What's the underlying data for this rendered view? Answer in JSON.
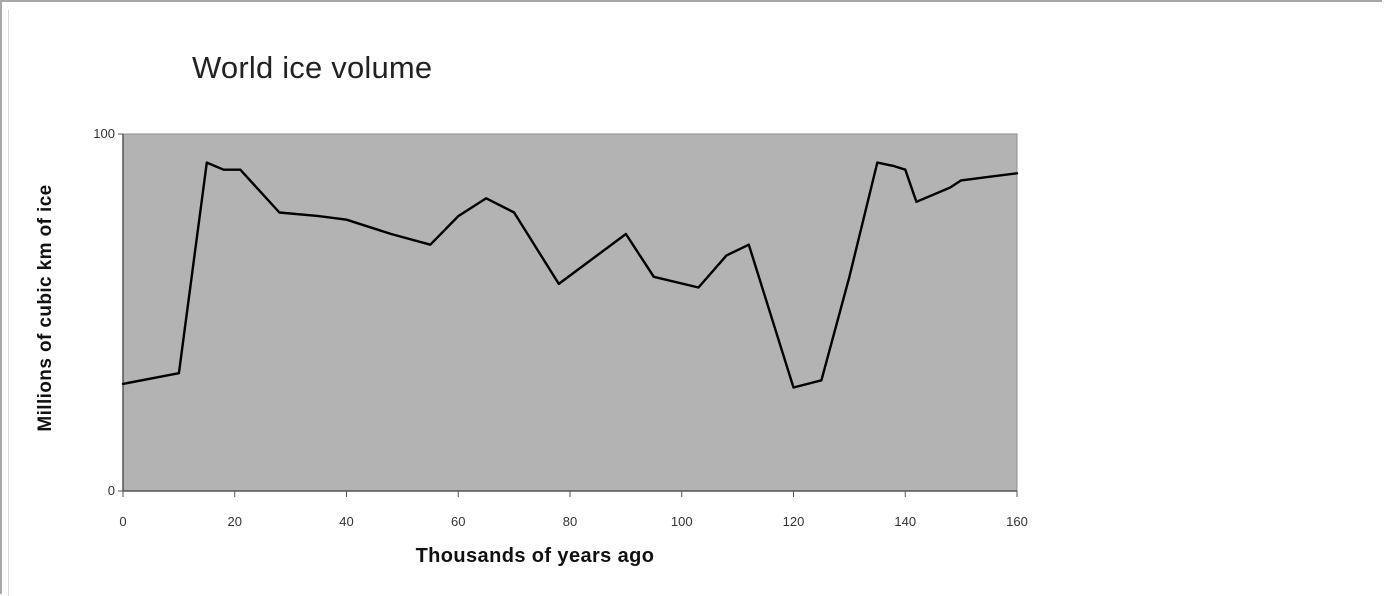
{
  "chart_data": {
    "type": "line",
    "title": "World ice volume",
    "xlabel": "Thousands of years ago",
    "ylabel": "Millions of cubic km of ice",
    "xlim": [
      0,
      160
    ],
    "ylim": [
      0,
      100
    ],
    "x_ticks": [
      "0",
      "20",
      "40",
      "60",
      "80",
      "100",
      "120",
      "140",
      "160"
    ],
    "y_ticks": [
      "0",
      "100"
    ],
    "grid": false,
    "legend": "none",
    "plot_background": "#b3b3b3",
    "line_color": "#000000",
    "series": [
      {
        "x": [
          0,
          10,
          15,
          18,
          21,
          28,
          35,
          40,
          48,
          55,
          60,
          65,
          70,
          78,
          84,
          90,
          95,
          103,
          108,
          112,
          120,
          125,
          130,
          135,
          138,
          140,
          142,
          148,
          150,
          155,
          160
        ],
        "y": [
          30,
          33,
          92,
          90,
          90,
          78,
          77,
          76,
          72,
          69,
          77,
          82,
          78,
          58,
          65,
          72,
          60,
          57,
          66,
          69,
          29,
          31,
          60,
          92,
          91,
          90,
          81,
          85,
          87,
          88,
          89
        ]
      }
    ]
  }
}
